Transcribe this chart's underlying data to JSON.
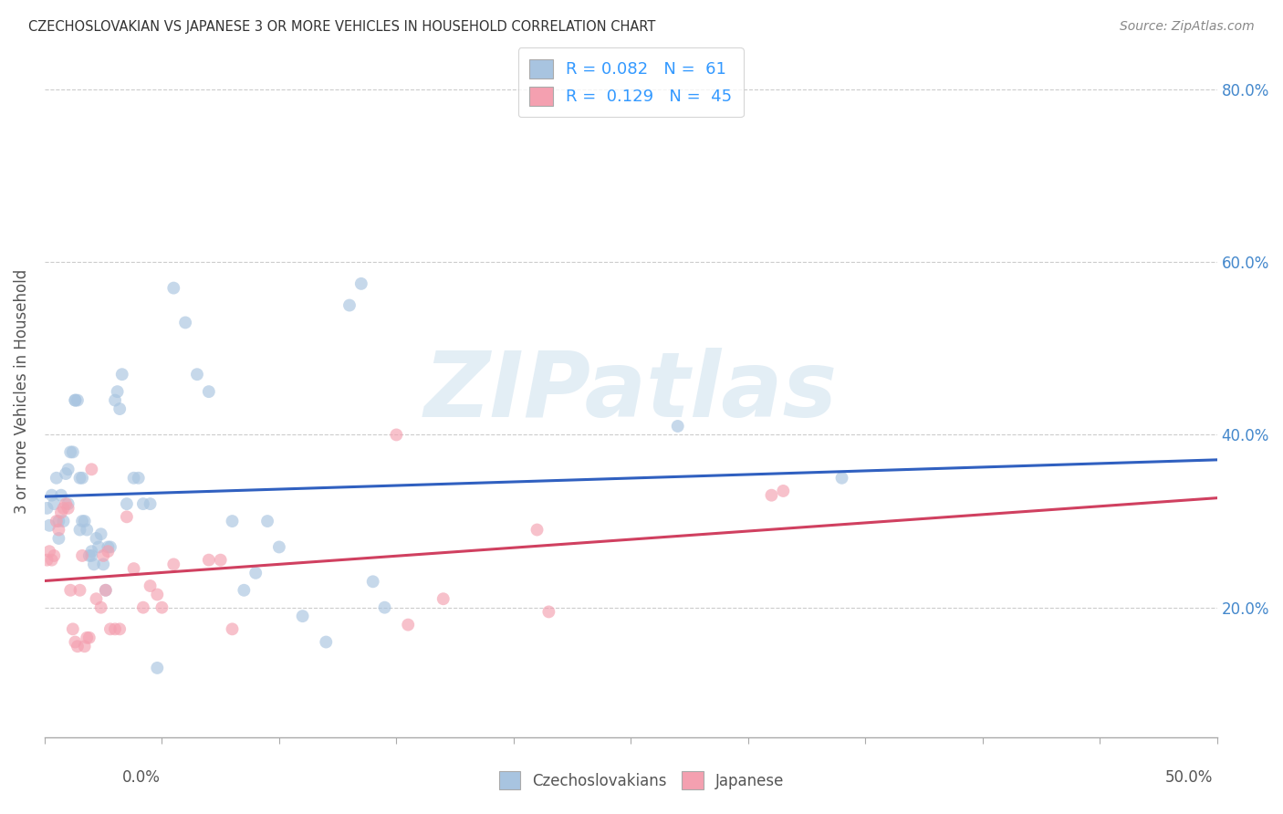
{
  "title": "CZECHOSLOVAKIAN VS JAPANESE 3 OR MORE VEHICLES IN HOUSEHOLD CORRELATION CHART",
  "source": "Source: ZipAtlas.com",
  "ylabel": "3 or more Vehicles in Household",
  "watermark": "ZIPatlas",
  "legend_blue_r": "R = 0.082",
  "legend_blue_n": "N =  61",
  "legend_pink_r": "R =  0.129",
  "legend_pink_n": "N =  45",
  "blue_color": "#a8c4e0",
  "pink_color": "#f4a0b0",
  "trendline_blue": "#3060c0",
  "trendline_pink": "#d04060",
  "blue_scatter": [
    [
      0.001,
      0.315
    ],
    [
      0.002,
      0.295
    ],
    [
      0.003,
      0.33
    ],
    [
      0.004,
      0.32
    ],
    [
      0.005,
      0.35
    ],
    [
      0.006,
      0.3
    ],
    [
      0.006,
      0.28
    ],
    [
      0.007,
      0.33
    ],
    [
      0.008,
      0.3
    ],
    [
      0.009,
      0.355
    ],
    [
      0.01,
      0.32
    ],
    [
      0.01,
      0.36
    ],
    [
      0.011,
      0.38
    ],
    [
      0.012,
      0.38
    ],
    [
      0.013,
      0.44
    ],
    [
      0.013,
      0.44
    ],
    [
      0.014,
      0.44
    ],
    [
      0.015,
      0.29
    ],
    [
      0.015,
      0.35
    ],
    [
      0.016,
      0.3
    ],
    [
      0.016,
      0.35
    ],
    [
      0.017,
      0.3
    ],
    [
      0.018,
      0.29
    ],
    [
      0.019,
      0.26
    ],
    [
      0.02,
      0.265
    ],
    [
      0.02,
      0.26
    ],
    [
      0.021,
      0.25
    ],
    [
      0.022,
      0.28
    ],
    [
      0.023,
      0.27
    ],
    [
      0.024,
      0.285
    ],
    [
      0.025,
      0.25
    ],
    [
      0.026,
      0.22
    ],
    [
      0.027,
      0.27
    ],
    [
      0.028,
      0.27
    ],
    [
      0.03,
      0.44
    ],
    [
      0.031,
      0.45
    ],
    [
      0.032,
      0.43
    ],
    [
      0.033,
      0.47
    ],
    [
      0.035,
      0.32
    ],
    [
      0.038,
      0.35
    ],
    [
      0.04,
      0.35
    ],
    [
      0.042,
      0.32
    ],
    [
      0.045,
      0.32
    ],
    [
      0.048,
      0.13
    ],
    [
      0.055,
      0.57
    ],
    [
      0.06,
      0.53
    ],
    [
      0.065,
      0.47
    ],
    [
      0.07,
      0.45
    ],
    [
      0.08,
      0.3
    ],
    [
      0.085,
      0.22
    ],
    [
      0.09,
      0.24
    ],
    [
      0.095,
      0.3
    ],
    [
      0.1,
      0.27
    ],
    [
      0.11,
      0.19
    ],
    [
      0.12,
      0.16
    ],
    [
      0.13,
      0.55
    ],
    [
      0.135,
      0.575
    ],
    [
      0.14,
      0.23
    ],
    [
      0.145,
      0.2
    ],
    [
      0.27,
      0.41
    ],
    [
      0.34,
      0.35
    ]
  ],
  "pink_scatter": [
    [
      0.001,
      0.255
    ],
    [
      0.002,
      0.265
    ],
    [
      0.003,
      0.255
    ],
    [
      0.004,
      0.26
    ],
    [
      0.005,
      0.3
    ],
    [
      0.006,
      0.29
    ],
    [
      0.007,
      0.31
    ],
    [
      0.008,
      0.315
    ],
    [
      0.009,
      0.32
    ],
    [
      0.01,
      0.315
    ],
    [
      0.011,
      0.22
    ],
    [
      0.012,
      0.175
    ],
    [
      0.013,
      0.16
    ],
    [
      0.014,
      0.155
    ],
    [
      0.015,
      0.22
    ],
    [
      0.016,
      0.26
    ],
    [
      0.017,
      0.155
    ],
    [
      0.018,
      0.165
    ],
    [
      0.019,
      0.165
    ],
    [
      0.02,
      0.36
    ],
    [
      0.022,
      0.21
    ],
    [
      0.024,
      0.2
    ],
    [
      0.025,
      0.26
    ],
    [
      0.026,
      0.22
    ],
    [
      0.027,
      0.265
    ],
    [
      0.028,
      0.175
    ],
    [
      0.03,
      0.175
    ],
    [
      0.032,
      0.175
    ],
    [
      0.035,
      0.305
    ],
    [
      0.038,
      0.245
    ],
    [
      0.042,
      0.2
    ],
    [
      0.045,
      0.225
    ],
    [
      0.048,
      0.215
    ],
    [
      0.05,
      0.2
    ],
    [
      0.055,
      0.25
    ],
    [
      0.07,
      0.255
    ],
    [
      0.075,
      0.255
    ],
    [
      0.08,
      0.175
    ],
    [
      0.15,
      0.4
    ],
    [
      0.155,
      0.18
    ],
    [
      0.17,
      0.21
    ],
    [
      0.21,
      0.29
    ],
    [
      0.215,
      0.195
    ],
    [
      0.31,
      0.33
    ],
    [
      0.315,
      0.335
    ]
  ],
  "xlim": [
    0.0,
    0.5
  ],
  "ylim": [
    0.05,
    0.85
  ],
  "yticks": [
    0.2,
    0.4,
    0.6,
    0.8
  ],
  "ytick_labels": [
    "20.0%",
    "40.0%",
    "60.0%",
    "80.0%"
  ],
  "xticks": [
    0.0,
    0.05,
    0.1,
    0.15,
    0.2,
    0.25,
    0.3,
    0.35,
    0.4,
    0.45,
    0.5
  ],
  "marker_size": 100,
  "alpha": 0.65,
  "figsize": [
    14.06,
    8.92
  ],
  "dpi": 100
}
